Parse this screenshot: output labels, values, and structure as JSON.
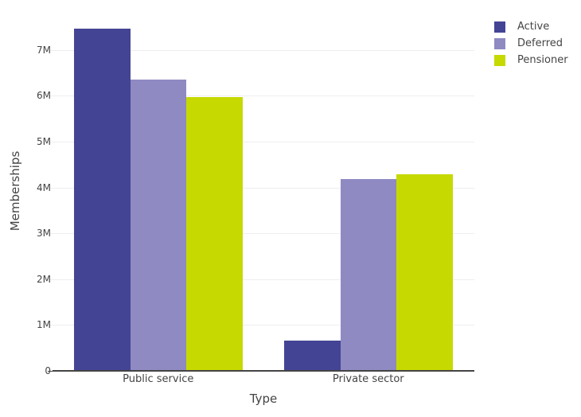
{
  "chart_data": {
    "type": "bar",
    "title": "",
    "xlabel": "Type",
    "ylabel": "Memberships",
    "categories": [
      "Public service",
      "Private sector"
    ],
    "series": [
      {
        "name": "Active",
        "color": "#444495",
        "values": [
          7460000,
          660000
        ]
      },
      {
        "name": "Deferred",
        "color": "#8f8ac2",
        "values": [
          6360000,
          4190000
        ]
      },
      {
        "name": "Pensioner",
        "color": "#c6d900",
        "values": [
          5980000,
          4290000
        ]
      }
    ],
    "ylim": [
      0,
      7600000
    ],
    "yticks": [
      0,
      1000000,
      2000000,
      3000000,
      4000000,
      5000000,
      6000000,
      7000000
    ],
    "ytick_labels": [
      "0",
      "1M",
      "2M",
      "3M",
      "4M",
      "5M",
      "6M",
      "7M"
    ],
    "grid": true,
    "legend_position": "top-right"
  }
}
